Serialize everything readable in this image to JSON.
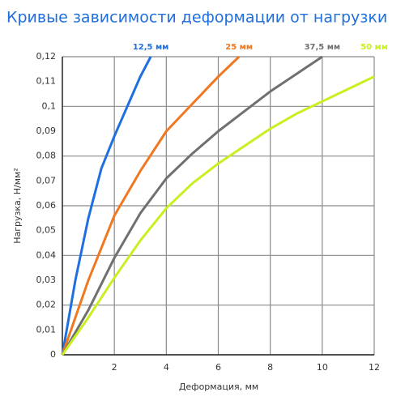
{
  "chart_data": {
    "type": "line",
    "title": "Кривые зависимости деформации от нагрузки",
    "x_label": "Деформация, мм",
    "y_label": "Нагрузка, Н/мм²",
    "xlim": [
      0,
      12
    ],
    "xticks": [
      2,
      4,
      6,
      8,
      10,
      12
    ],
    "ylim": [
      0,
      0.12
    ],
    "yticks": [
      0,
      {
        "value": 0.01,
        "label": "0,01"
      },
      {
        "value": 0.02,
        "label": "0,02"
      },
      {
        "value": 0.03,
        "label": "0,03"
      },
      {
        "value": 0.04,
        "label": "0,04"
      },
      {
        "value": 0.05,
        "label": "0,05"
      },
      {
        "value": 0.06,
        "label": "0,06"
      },
      {
        "value": 0.07,
        "label": "0,07"
      },
      {
        "value": 0.08,
        "label": "0,08"
      },
      {
        "value": 0.09,
        "label": "0,09"
      },
      {
        "value": 0.1,
        "label": "0,1"
      },
      {
        "value": 0.11,
        "label": "0,11"
      },
      {
        "value": 0.12,
        "label": "0,12"
      }
    ],
    "grid": true,
    "grid_every": 2,
    "series": [
      {
        "name": "12,5 мм",
        "color": "#1f6fde",
        "x": [
          0,
          0.5,
          1,
          1.5,
          2,
          2.5,
          3,
          3.4
        ],
        "values": [
          0,
          0.03,
          0.055,
          0.075,
          0.088,
          0.1,
          0.112,
          0.12
        ]
      },
      {
        "name": "25 мм",
        "color": "#f07820",
        "x": [
          0,
          1,
          2,
          3,
          4,
          5,
          6,
          6.8
        ],
        "values": [
          0,
          0.03,
          0.056,
          0.074,
          0.09,
          0.101,
          0.112,
          0.12
        ]
      },
      {
        "name": "37,5 мм",
        "color": "#707070",
        "x": [
          0,
          1,
          2,
          3,
          4,
          5,
          6,
          7,
          8,
          9,
          10
        ],
        "values": [
          0,
          0.018,
          0.039,
          0.057,
          0.071,
          0.081,
          0.09,
          0.098,
          0.106,
          0.113,
          0.12
        ]
      },
      {
        "name": "50 мм",
        "color": "#c8f020",
        "x": [
          0,
          1,
          2,
          3,
          4,
          5,
          6,
          7,
          8,
          9,
          10,
          11,
          12
        ],
        "values": [
          0,
          0.015,
          0.031,
          0.046,
          0.059,
          0.069,
          0.077,
          0.084,
          0.091,
          0.097,
          0.102,
          0.107,
          0.112
        ]
      }
    ]
  }
}
